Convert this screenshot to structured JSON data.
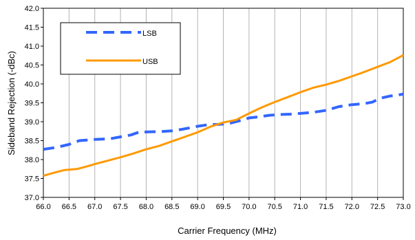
{
  "chart_data": {
    "type": "line",
    "xlabel": "Carrier Frequency (MHz)",
    "ylabel": "Sideband Rejection (-dBc)",
    "xlim": [
      66.0,
      73.0
    ],
    "ylim": [
      37.0,
      42.0
    ],
    "x_ticks": [
      "66.0",
      "66.5",
      "67.0",
      "67.5",
      "68.0",
      "68.5",
      "69.0",
      "69.5",
      "70.0",
      "70.5",
      "71.0",
      "71.5",
      "72.0",
      "72.5",
      "73.0"
    ],
    "y_ticks": [
      "37.0",
      "37.5",
      "38.0",
      "38.5",
      "39.0",
      "39.5",
      "40.0",
      "40.5",
      "41.0",
      "41.5",
      "42.0"
    ],
    "grid": "vertical",
    "legend_position": "top-left",
    "series": [
      {
        "name": "LSB",
        "color": "#3366ff",
        "style": "dashed",
        "points": [
          [
            66.0,
            38.27
          ],
          [
            66.25,
            38.32
          ],
          [
            66.5,
            38.4
          ],
          [
            66.7,
            38.5
          ],
          [
            67.0,
            38.53
          ],
          [
            67.3,
            38.55
          ],
          [
            67.5,
            38.6
          ],
          [
            67.7,
            38.65
          ],
          [
            67.85,
            38.72
          ],
          [
            68.0,
            38.73
          ],
          [
            68.3,
            38.74
          ],
          [
            68.5,
            38.76
          ],
          [
            68.7,
            38.8
          ],
          [
            68.9,
            38.85
          ],
          [
            69.0,
            38.88
          ],
          [
            69.2,
            38.92
          ],
          [
            69.4,
            38.93
          ],
          [
            69.6,
            38.95
          ],
          [
            69.8,
            39.02
          ],
          [
            70.0,
            39.1
          ],
          [
            70.2,
            39.13
          ],
          [
            70.4,
            39.17
          ],
          [
            70.6,
            39.19
          ],
          [
            70.8,
            39.2
          ],
          [
            71.0,
            39.22
          ],
          [
            71.25,
            39.25
          ],
          [
            71.5,
            39.3
          ],
          [
            71.75,
            39.4
          ],
          [
            72.0,
            39.45
          ],
          [
            72.25,
            39.48
          ],
          [
            72.4,
            39.52
          ],
          [
            72.55,
            39.62
          ],
          [
            72.75,
            39.68
          ],
          [
            73.0,
            39.73
          ]
        ]
      },
      {
        "name": "USB",
        "color": "#ff9900",
        "style": "solid",
        "points": [
          [
            66.0,
            37.57
          ],
          [
            66.2,
            37.65
          ],
          [
            66.4,
            37.72
          ],
          [
            66.65,
            37.75
          ],
          [
            66.85,
            37.82
          ],
          [
            67.0,
            37.88
          ],
          [
            67.25,
            37.97
          ],
          [
            67.5,
            38.06
          ],
          [
            67.75,
            38.16
          ],
          [
            68.0,
            38.27
          ],
          [
            68.25,
            38.36
          ],
          [
            68.5,
            38.48
          ],
          [
            68.75,
            38.6
          ],
          [
            69.0,
            38.72
          ],
          [
            69.25,
            38.87
          ],
          [
            69.5,
            38.98
          ],
          [
            69.75,
            39.05
          ],
          [
            70.0,
            39.22
          ],
          [
            70.25,
            39.38
          ],
          [
            70.5,
            39.52
          ],
          [
            70.75,
            39.65
          ],
          [
            71.0,
            39.78
          ],
          [
            71.25,
            39.9
          ],
          [
            71.5,
            39.98
          ],
          [
            71.75,
            40.08
          ],
          [
            72.0,
            40.2
          ],
          [
            72.25,
            40.32
          ],
          [
            72.5,
            40.45
          ],
          [
            72.75,
            40.58
          ],
          [
            73.0,
            40.76
          ]
        ]
      }
    ]
  }
}
